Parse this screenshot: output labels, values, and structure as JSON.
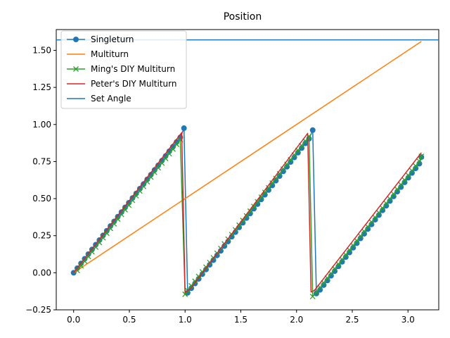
{
  "chart_data": {
    "type": "line",
    "title": "Position",
    "xlabel": "",
    "ylabel": "",
    "xlim": [
      -0.156,
      3.276
    ],
    "ylim": [
      -0.25,
      1.64
    ],
    "x_ticks": [
      0.0,
      0.5,
      1.0,
      1.5,
      2.0,
      2.5,
      3.0
    ],
    "x_tick_labels": [
      "0.0",
      "0.5",
      "1.0",
      "1.5",
      "2.0",
      "2.5",
      "3.0"
    ],
    "y_ticks": [
      -0.25,
      0.0,
      0.25,
      0.5,
      0.75,
      1.0,
      1.25,
      1.5
    ],
    "y_tick_labels": [
      "−0.25",
      "0.00",
      "0.25",
      "0.50",
      "0.75",
      "1.00",
      "1.25",
      "1.50"
    ],
    "grid": false,
    "legend_position": "top-left",
    "colors": {
      "singleturn": "#1f77b4",
      "multiturn": "#ff7f0e",
      "ming": "#2ca02c",
      "peter": "#d62728",
      "set_angle": "#1f77b4"
    },
    "series": [
      {
        "name": "Singleturn",
        "marker": "circle",
        "x": [
          0,
          0.033,
          0.066,
          0.099,
          0.132,
          0.165,
          0.198,
          0.231,
          0.264,
          0.297,
          0.33,
          0.363,
          0.396,
          0.429,
          0.462,
          0.495,
          0.528,
          0.561,
          0.594,
          0.627,
          0.66,
          0.693,
          0.726,
          0.759,
          0.792,
          0.825,
          0.858,
          0.891,
          0.924,
          0.957,
          0.99,
          1.023,
          1.056,
          1.089,
          1.122,
          1.155,
          1.188,
          1.221,
          1.254,
          1.287,
          1.32,
          1.353,
          1.386,
          1.419,
          1.452,
          1.485,
          1.518,
          1.551,
          1.584,
          1.617,
          1.65,
          1.683,
          1.716,
          1.749,
          1.782,
          1.815,
          1.848,
          1.881,
          1.914,
          1.947,
          1.98,
          2.013,
          2.046,
          2.079,
          2.112,
          2.145,
          2.178,
          2.211,
          2.244,
          2.277,
          2.31,
          2.343,
          2.376,
          2.409,
          2.442,
          2.475,
          2.508,
          2.541,
          2.574,
          2.607,
          2.64,
          2.673,
          2.706,
          2.739,
          2.772,
          2.805,
          2.838,
          2.871,
          2.904,
          2.937,
          2.97,
          3.003,
          3.036,
          3.069,
          3.102,
          3.12
        ],
        "y": [
          0,
          0.031,
          0.063,
          0.094,
          0.126,
          0.157,
          0.189,
          0.22,
          0.252,
          0.283,
          0.315,
          0.346,
          0.378,
          0.409,
          0.441,
          0.472,
          0.504,
          0.535,
          0.567,
          0.598,
          0.63,
          0.661,
          0.693,
          0.724,
          0.756,
          0.787,
          0.819,
          0.85,
          0.882,
          0.913,
          0.975,
          -0.135,
          -0.104,
          -0.072,
          -0.041,
          -0.009,
          0.022,
          0.054,
          0.085,
          0.117,
          0.148,
          0.18,
          0.211,
          0.243,
          0.274,
          0.306,
          0.337,
          0.369,
          0.4,
          0.432,
          0.463,
          0.495,
          0.526,
          0.558,
          0.589,
          0.621,
          0.652,
          0.684,
          0.715,
          0.747,
          0.778,
          0.81,
          0.841,
          0.873,
          0.904,
          0.962,
          -0.14,
          -0.115,
          -0.083,
          -0.052,
          -0.02,
          0.011,
          0.043,
          0.074,
          0.106,
          0.137,
          0.169,
          0.2,
          0.232,
          0.263,
          0.295,
          0.326,
          0.358,
          0.389,
          0.421,
          0.452,
          0.484,
          0.515,
          0.547,
          0.578,
          0.61,
          0.641,
          0.673,
          0.704,
          0.736,
          0.78
        ]
      },
      {
        "name": "Multiturn",
        "marker": "none",
        "x": [
          0,
          3.12
        ],
        "y": [
          0,
          1.56
        ]
      },
      {
        "name": "Ming's DIY Multiturn",
        "marker": "x",
        "x": [
          0.033,
          0.066,
          0.099,
          0.132,
          0.165,
          0.198,
          0.231,
          0.264,
          0.297,
          0.33,
          0.363,
          0.396,
          0.429,
          0.462,
          0.495,
          0.528,
          0.561,
          0.594,
          0.627,
          0.66,
          0.693,
          0.726,
          0.759,
          0.792,
          0.825,
          0.858,
          0.891,
          0.924,
          0.957,
          1.0,
          1.023,
          1.056,
          1.089,
          1.122,
          1.155,
          1.188,
          1.221,
          1.254,
          1.287,
          1.32,
          1.353,
          1.386,
          1.419,
          1.452,
          1.485,
          1.518,
          1.551,
          1.584,
          1.617,
          1.65,
          1.683,
          1.716,
          1.749,
          1.782,
          1.815,
          1.848,
          1.881,
          1.914,
          1.947,
          1.98,
          2.013,
          2.046,
          2.079,
          2.112,
          2.145,
          2.178,
          2.211,
          2.244,
          2.277,
          2.31,
          2.343,
          2.376,
          2.409,
          2.442,
          2.475,
          2.508,
          2.541,
          2.574,
          2.607,
          2.64,
          2.673,
          2.706,
          2.739,
          2.772,
          2.805,
          2.838,
          2.871,
          2.904,
          2.937,
          2.97,
          3.003,
          3.036,
          3.069,
          3.102,
          3.12
        ],
        "y": [
          0.015,
          0.047,
          0.078,
          0.11,
          0.141,
          0.173,
          0.204,
          0.236,
          0.267,
          0.299,
          0.33,
          0.362,
          0.393,
          0.425,
          0.456,
          0.488,
          0.519,
          0.551,
          0.582,
          0.614,
          0.645,
          0.677,
          0.708,
          0.74,
          0.771,
          0.803,
          0.834,
          0.866,
          0.897,
          -0.145,
          -0.12,
          -0.088,
          -0.057,
          -0.025,
          0.006,
          0.038,
          0.069,
          0.101,
          0.132,
          0.164,
          0.195,
          0.227,
          0.258,
          0.29,
          0.321,
          0.353,
          0.384,
          0.416,
          0.447,
          0.479,
          0.51,
          0.542,
          0.573,
          0.605,
          0.636,
          0.668,
          0.699,
          0.731,
          0.762,
          0.794,
          0.825,
          0.857,
          0.888,
          0.92,
          -0.16,
          -0.131,
          -0.099,
          -0.068,
          -0.036,
          -0.005,
          0.027,
          0.058,
          0.09,
          0.121,
          0.153,
          0.184,
          0.216,
          0.247,
          0.279,
          0.31,
          0.342,
          0.373,
          0.405,
          0.436,
          0.468,
          0.499,
          0.531,
          0.562,
          0.594,
          0.625,
          0.657,
          0.688,
          0.72,
          0.751,
          0.785
        ]
      },
      {
        "name": "Peter's DIY Multiturn",
        "marker": "none",
        "x": [
          0,
          0.97,
          1.0,
          1.05,
          2.1,
          2.13,
          2.16,
          3.12
        ],
        "y": [
          0,
          0.945,
          -0.135,
          -0.105,
          0.94,
          -0.13,
          -0.12,
          0.81
        ]
      },
      {
        "name": "Set Angle",
        "marker": "none",
        "hline": 1.5708
      }
    ]
  }
}
